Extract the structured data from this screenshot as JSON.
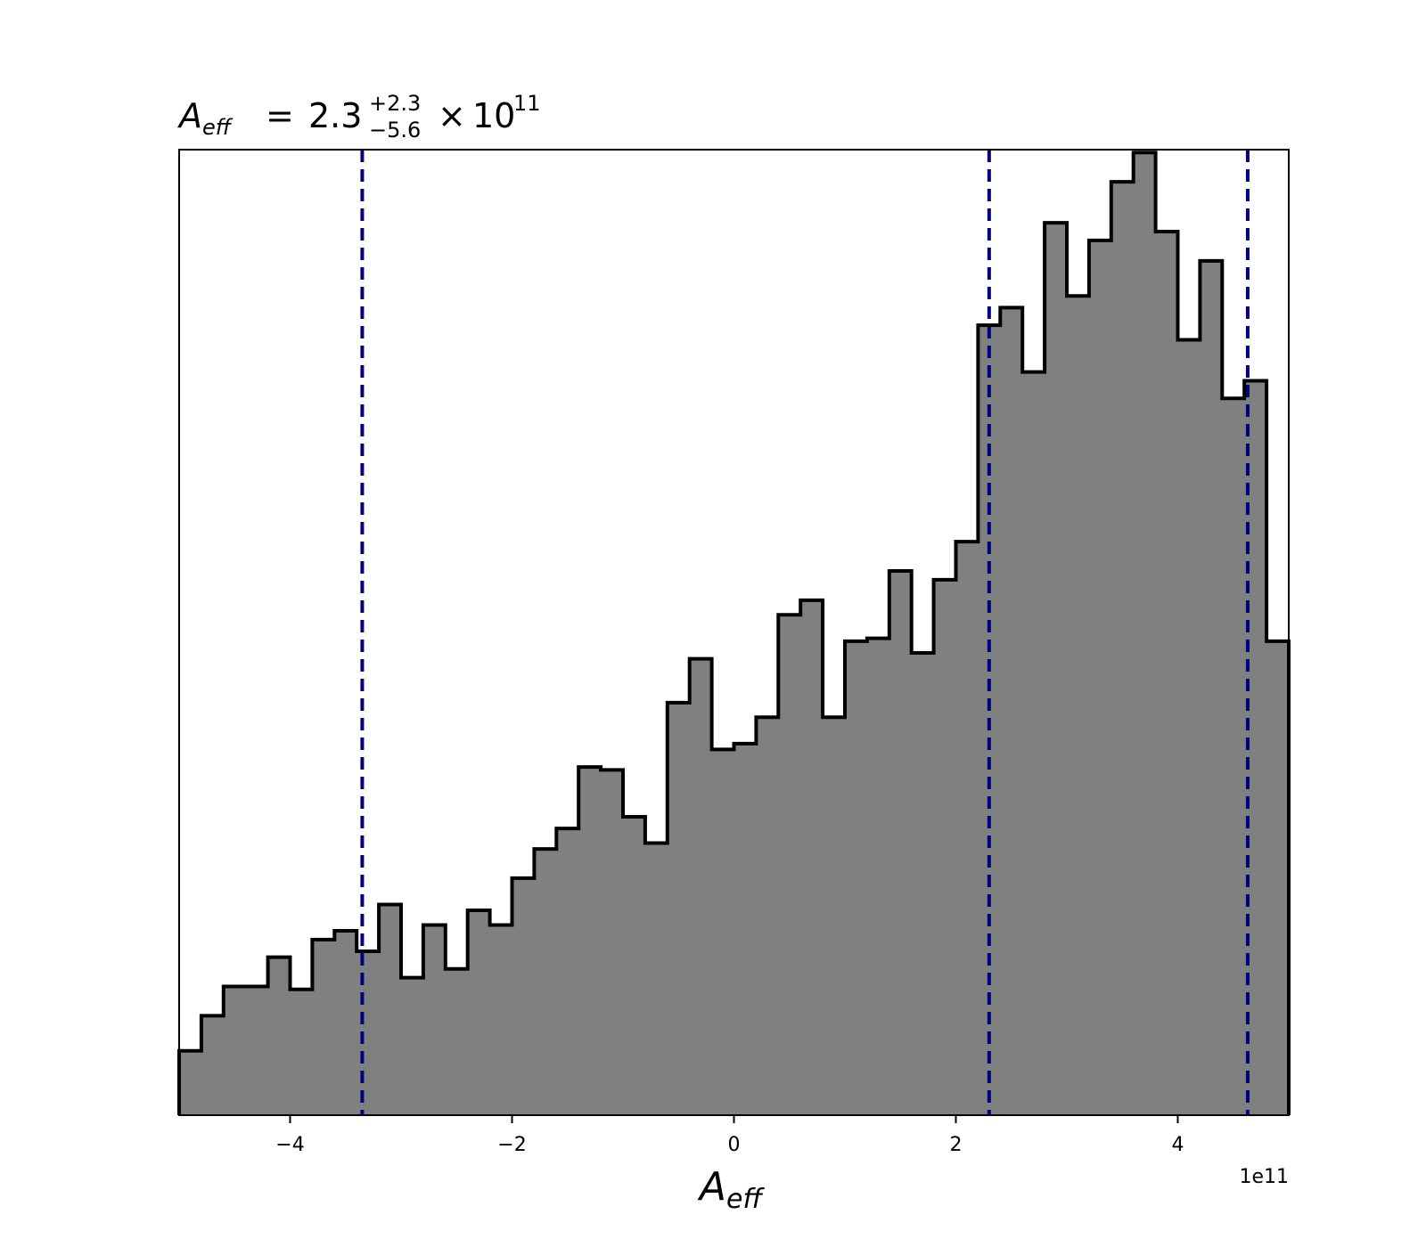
{
  "chart_data": {
    "type": "histogram",
    "title": {
      "symbol": "A",
      "symbol_sub": "eff",
      "equals": "=",
      "value": "2.3",
      "upper": "+2.3",
      "lower": "−5.6",
      "times": "×",
      "base": "10",
      "exponent": "11"
    },
    "xlabel": {
      "symbol": "A",
      "sub": "eff"
    },
    "x_offset_label": "1e11",
    "xlim": [
      -5,
      5
    ],
    "ylim": [
      0,
      330
    ],
    "x_ticks": [
      -4,
      -2,
      0,
      2,
      4
    ],
    "x_tick_labels": [
      "−4",
      "−2",
      "0",
      "2",
      "4"
    ],
    "y_axis_visible": false,
    "grid": false,
    "bins": {
      "start": -5,
      "width": 0.2,
      "counts": [
        22,
        34,
        44,
        44,
        54,
        43,
        60,
        63,
        56,
        72,
        47,
        65,
        50,
        70,
        65,
        81,
        91,
        98,
        119,
        118,
        102,
        93,
        141,
        156,
        125,
        127,
        136,
        171,
        176,
        136,
        162,
        163,
        186,
        158,
        183,
        196,
        270,
        276,
        254,
        305,
        280,
        299,
        319,
        329,
        302,
        265,
        292,
        245,
        251,
        162
      ]
    },
    "fill_color": "#808080",
    "edge_color": "#000000",
    "vlines": {
      "color": "#00007f",
      "style": "dashed",
      "x": [
        -3.35,
        2.3,
        4.63
      ]
    }
  }
}
